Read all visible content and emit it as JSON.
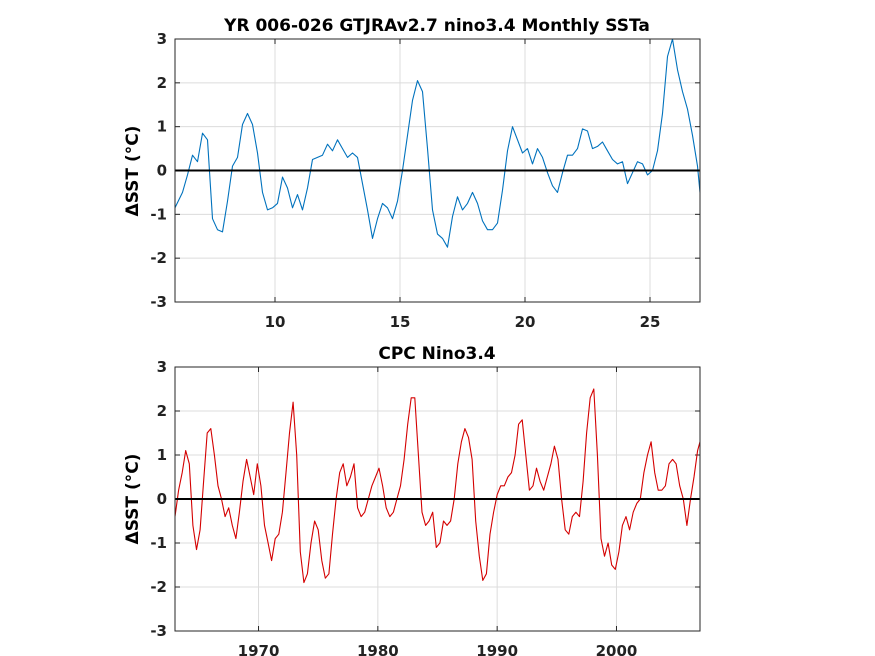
{
  "chart_data": [
    {
      "type": "line",
      "title": "YR 006-026 GTJRAv2.7 nino3.4 Monthly SSTa",
      "ylabel": "ΔSST (°C)",
      "xlabel": "",
      "xlim": [
        6,
        27
      ],
      "ylim": [
        -3,
        3
      ],
      "xticks": [
        10,
        15,
        20,
        25
      ],
      "yticks": [
        -3,
        -2,
        -1,
        0,
        1,
        2,
        3
      ],
      "grid": true,
      "zero_line": true,
      "color": "#0072bd",
      "series": [
        {
          "x": [
            6.0,
            6.3,
            6.5,
            6.7,
            6.9,
            7.1,
            7.3,
            7.5,
            7.7,
            7.9,
            8.1,
            8.3,
            8.5,
            8.7,
            8.9,
            9.1,
            9.3,
            9.5,
            9.7,
            9.9,
            10.1,
            10.3,
            10.5,
            10.7,
            10.9,
            11.1,
            11.3,
            11.5,
            11.7,
            11.9,
            12.1,
            12.3,
            12.5,
            12.7,
            12.9,
            13.1,
            13.3,
            13.5,
            13.7,
            13.9,
            14.1,
            14.3,
            14.5,
            14.7,
            14.9,
            15.1,
            15.3,
            15.5,
            15.7,
            15.9,
            16.1,
            16.3,
            16.5,
            16.7,
            16.9,
            17.1,
            17.3,
            17.5,
            17.7,
            17.9,
            18.1,
            18.3,
            18.5,
            18.7,
            18.9,
            19.1,
            19.3,
            19.5,
            19.7,
            19.9,
            20.1,
            20.3,
            20.5,
            20.7,
            20.9,
            21.1,
            21.3,
            21.5,
            21.7,
            21.9,
            22.1,
            22.3,
            22.5,
            22.7,
            22.9,
            23.1,
            23.3,
            23.5,
            23.7,
            23.9,
            24.1,
            24.3,
            24.5,
            24.7,
            24.9,
            25.1,
            25.3,
            25.5,
            25.7,
            25.9,
            26.1,
            26.3,
            26.5,
            26.7,
            26.9,
            27.0
          ],
          "y": [
            -0.85,
            -0.5,
            -0.1,
            0.35,
            0.2,
            0.85,
            0.7,
            -1.1,
            -1.35,
            -1.4,
            -0.7,
            0.1,
            0.3,
            1.05,
            1.3,
            1.05,
            0.4,
            -0.5,
            -0.9,
            -0.85,
            -0.75,
            -0.15,
            -0.4,
            -0.85,
            -0.55,
            -0.9,
            -0.4,
            0.25,
            0.3,
            0.35,
            0.6,
            0.45,
            0.7,
            0.5,
            0.3,
            0.4,
            0.3,
            -0.3,
            -0.9,
            -1.55,
            -1.1,
            -0.75,
            -0.85,
            -1.1,
            -0.7,
            0.0,
            0.8,
            1.6,
            2.05,
            1.8,
            0.5,
            -0.9,
            -1.45,
            -1.55,
            -1.75,
            -1.05,
            -0.6,
            -0.9,
            -0.75,
            -0.5,
            -0.75,
            -1.15,
            -1.35,
            -1.35,
            -1.2,
            -0.45,
            0.45,
            1.0,
            0.7,
            0.4,
            0.5,
            0.15,
            0.5,
            0.3,
            -0.05,
            -0.35,
            -0.5,
            -0.05,
            0.35,
            0.35,
            0.5,
            0.95,
            0.9,
            0.5,
            0.55,
            0.65,
            0.45,
            0.25,
            0.15,
            0.2,
            -0.3,
            -0.05,
            0.2,
            0.15,
            -0.1,
            0.0,
            0.45,
            1.3,
            2.6,
            3.0,
            2.3,
            1.8,
            1.4,
            0.8,
            0.1,
            -0.5
          ]
        }
      ]
    },
    {
      "type": "line",
      "title": "CPC Nino3.4",
      "ylabel": "ΔSST (°C)",
      "xlabel": "",
      "xlim": [
        1963,
        2007
      ],
      "ylim": [
        -3,
        3
      ],
      "xticks": [
        1970,
        1980,
        1990,
        2000
      ],
      "yticks": [
        -3,
        -2,
        -1,
        0,
        1,
        2,
        3
      ],
      "grid": true,
      "zero_line": true,
      "color": "#d40000",
      "series": [
        {
          "x": [
            1963.0,
            1963.3,
            1963.6,
            1963.9,
            1964.2,
            1964.5,
            1964.8,
            1965.1,
            1965.4,
            1965.7,
            1966.0,
            1966.3,
            1966.6,
            1966.9,
            1967.2,
            1967.5,
            1967.8,
            1968.1,
            1968.4,
            1968.7,
            1969.0,
            1969.3,
            1969.6,
            1969.9,
            1970.2,
            1970.5,
            1970.8,
            1971.1,
            1971.4,
            1971.7,
            1972.0,
            1972.3,
            1972.6,
            1972.9,
            1973.2,
            1973.5,
            1973.8,
            1974.1,
            1974.4,
            1974.7,
            1975.0,
            1975.3,
            1975.6,
            1975.9,
            1976.2,
            1976.5,
            1976.8,
            1977.1,
            1977.4,
            1977.7,
            1978.0,
            1978.3,
            1978.6,
            1978.9,
            1979.2,
            1979.5,
            1979.8,
            1980.1,
            1980.4,
            1980.7,
            1981.0,
            1981.3,
            1981.6,
            1981.9,
            1982.2,
            1982.5,
            1982.8,
            1983.1,
            1983.4,
            1983.7,
            1984.0,
            1984.3,
            1984.6,
            1984.9,
            1985.2,
            1985.5,
            1985.8,
            1986.1,
            1986.4,
            1986.7,
            1987.0,
            1987.3,
            1987.6,
            1987.9,
            1988.2,
            1988.5,
            1988.8,
            1989.1,
            1989.4,
            1989.7,
            1990.0,
            1990.3,
            1990.6,
            1990.9,
            1991.2,
            1991.5,
            1991.8,
            1992.1,
            1992.4,
            1992.7,
            1993.0,
            1993.3,
            1993.6,
            1993.9,
            1994.2,
            1994.5,
            1994.8,
            1995.1,
            1995.4,
            1995.7,
            1996.0,
            1996.3,
            1996.6,
            1996.9,
            1997.2,
            1997.5,
            1997.8,
            1998.1,
            1998.4,
            1998.7,
            1999.0,
            1999.3,
            1999.6,
            1999.9,
            2000.2,
            2000.5,
            2000.8,
            2001.1,
            2001.4,
            2001.7,
            2002.0,
            2002.3,
            2002.6,
            2002.9,
            2003.2,
            2003.5,
            2003.8,
            2004.1,
            2004.4,
            2004.7,
            2005.0,
            2005.3,
            2005.6,
            2005.9,
            2006.2,
            2006.5,
            2006.8,
            2007.0
          ],
          "y": [
            -0.4,
            0.2,
            0.6,
            1.1,
            0.8,
            -0.6,
            -1.15,
            -0.7,
            0.4,
            1.5,
            1.6,
            1.0,
            0.3,
            0.0,
            -0.4,
            -0.2,
            -0.6,
            -0.9,
            -0.3,
            0.4,
            0.9,
            0.5,
            0.1,
            0.8,
            0.3,
            -0.6,
            -1.0,
            -1.4,
            -0.9,
            -0.8,
            -0.3,
            0.6,
            1.5,
            2.2,
            1.0,
            -1.2,
            -1.9,
            -1.7,
            -1.0,
            -0.5,
            -0.7,
            -1.4,
            -1.8,
            -1.7,
            -0.8,
            0.0,
            0.6,
            0.8,
            0.3,
            0.5,
            0.8,
            -0.2,
            -0.4,
            -0.3,
            0.0,
            0.3,
            0.5,
            0.7,
            0.3,
            -0.2,
            -0.4,
            -0.3,
            0.0,
            0.3,
            0.9,
            1.7,
            2.3,
            2.3,
            1.0,
            -0.3,
            -0.6,
            -0.5,
            -0.3,
            -1.1,
            -1.0,
            -0.5,
            -0.6,
            -0.5,
            0.0,
            0.8,
            1.3,
            1.6,
            1.4,
            0.9,
            -0.5,
            -1.3,
            -1.85,
            -1.7,
            -0.8,
            -0.3,
            0.1,
            0.3,
            0.3,
            0.5,
            0.6,
            1.0,
            1.7,
            1.8,
            1.0,
            0.2,
            0.3,
            0.7,
            0.4,
            0.2,
            0.5,
            0.8,
            1.2,
            0.9,
            0.0,
            -0.7,
            -0.8,
            -0.4,
            -0.3,
            -0.4,
            0.4,
            1.5,
            2.3,
            2.5,
            1.0,
            -0.9,
            -1.3,
            -1.0,
            -1.5,
            -1.6,
            -1.2,
            -0.6,
            -0.4,
            -0.7,
            -0.3,
            -0.1,
            0.0,
            0.6,
            1.0,
            1.3,
            0.6,
            0.2,
            0.2,
            0.3,
            0.8,
            0.9,
            0.8,
            0.3,
            0.0,
            -0.6,
            0.0,
            0.5,
            1.1,
            1.3
          ]
        }
      ]
    }
  ]
}
